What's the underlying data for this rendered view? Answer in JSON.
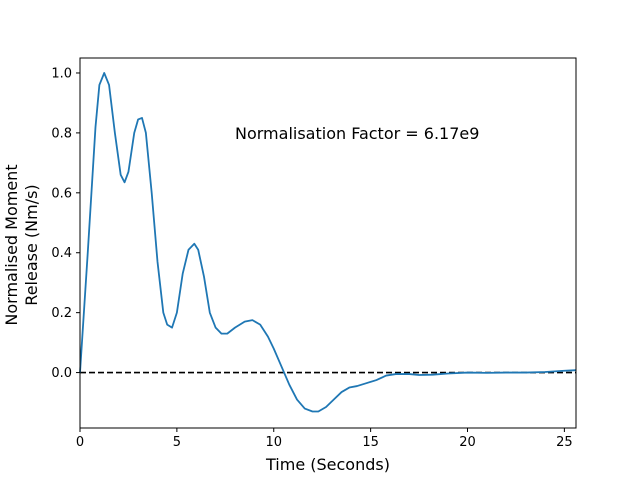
{
  "chart_data": {
    "type": "line",
    "title": "",
    "xlabel": "Time (Seconds)",
    "ylabel_lines": [
      "Normalised Moment",
      "Release (Nm/s)"
    ],
    "xlim": [
      0,
      25.6
    ],
    "ylim": [
      -0.185,
      1.05
    ],
    "xticks": [
      0,
      5,
      10,
      15,
      20,
      25
    ],
    "xtick_labels": [
      "0",
      "5",
      "10",
      "15",
      "20",
      "25"
    ],
    "yticks": [
      0.0,
      0.2,
      0.4,
      0.6,
      0.8,
      1.0
    ],
    "ytick_labels": [
      "0.0",
      "0.2",
      "0.4",
      "0.6",
      "0.8",
      "1.0"
    ],
    "grid": false,
    "annotation": {
      "text": "Normalisation Factor = 6.17e9",
      "x": 8.0,
      "y": 0.8
    },
    "reference_line": {
      "y": 0.0,
      "style": "dashed",
      "color": "#000000"
    },
    "series": [
      {
        "color": "#1f77b4",
        "x": [
          0,
          0.4,
          0.8,
          1.0,
          1.25,
          1.5,
          1.8,
          2.1,
          2.3,
          2.5,
          2.8,
          3.0,
          3.2,
          3.4,
          3.7,
          4.0,
          4.3,
          4.5,
          4.75,
          5.0,
          5.3,
          5.6,
          5.9,
          6.1,
          6.4,
          6.7,
          7.0,
          7.3,
          7.6,
          8.0,
          8.5,
          8.9,
          9.3,
          9.7,
          10.0,
          10.4,
          10.8,
          11.2,
          11.6,
          12.0,
          12.3,
          12.7,
          13.1,
          13.5,
          13.9,
          14.3,
          14.8,
          15.3,
          15.8,
          16.3,
          17.0,
          17.5,
          18.2,
          19.0,
          20.0,
          21.0,
          22.0,
          23.0,
          24.0,
          25.0,
          25.6
        ],
        "values": [
          0.0,
          0.4,
          0.82,
          0.96,
          1.0,
          0.96,
          0.8,
          0.66,
          0.635,
          0.67,
          0.8,
          0.845,
          0.85,
          0.8,
          0.6,
          0.37,
          0.2,
          0.16,
          0.15,
          0.2,
          0.33,
          0.41,
          0.43,
          0.41,
          0.32,
          0.2,
          0.15,
          0.13,
          0.13,
          0.15,
          0.17,
          0.175,
          0.16,
          0.12,
          0.08,
          0.02,
          -0.04,
          -0.09,
          -0.12,
          -0.13,
          -0.13,
          -0.115,
          -0.09,
          -0.065,
          -0.05,
          -0.045,
          -0.035,
          -0.025,
          -0.01,
          -0.005,
          -0.005,
          -0.008,
          -0.007,
          -0.003,
          0.0,
          -0.001,
          0.0,
          0.0,
          0.002,
          0.006,
          0.008
        ]
      }
    ]
  }
}
